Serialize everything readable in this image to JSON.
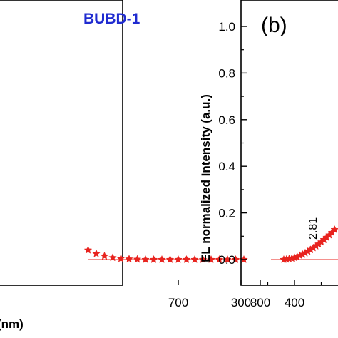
{
  "chart_data": [
    {
      "panel": "",
      "type": "scatter",
      "series_label": "BUBD-1",
      "xlabel": "(nm)",
      "ylabel": "",
      "xlim": [
        500,
        850
      ],
      "x_ticks": [
        "700",
        "800"
      ],
      "colors": {
        "marker": "#e8231e",
        "label": "#1f2bd0"
      },
      "series": [
        {
          "x": [
            590,
            600,
            610,
            620,
            630,
            640,
            650,
            660,
            670,
            680,
            690,
            700,
            710,
            720,
            730,
            740,
            750,
            760,
            770,
            780
          ],
          "y": [
            0.04,
            0.025,
            0.015,
            0.008,
            0.004,
            0.002,
            0.001,
            0.0,
            0.0,
            0.0,
            0.0,
            0.0,
            0.0,
            0.0,
            0.0,
            0.0,
            0.0,
            0.0,
            0.0,
            0.0
          ]
        }
      ]
    },
    {
      "panel": "(b)",
      "type": "scatter",
      "xlabel": "",
      "ylabel": "EL normalized Intensity (a.u.)",
      "xlim": [
        300,
        520
      ],
      "ylim": [
        -0.05,
        1.1
      ],
      "x_ticks": [
        "300",
        "400"
      ],
      "y_ticks": [
        "0.0",
        "0.2",
        "0.4",
        "0.6",
        "0.8",
        "1.0"
      ],
      "annotation": "2.81",
      "colors": {
        "marker": "#e8231e",
        "line": "#e8231e"
      },
      "series": [
        {
          "x": [
            380,
            385,
            390,
            395,
            400,
            405,
            410,
            415,
            420,
            425,
            430,
            435,
            440,
            445,
            450,
            455,
            460,
            465,
            470,
            475
          ],
          "y": [
            0.0,
            0.001,
            0.003,
            0.005,
            0.008,
            0.012,
            0.017,
            0.022,
            0.028,
            0.035,
            0.042,
            0.05,
            0.058,
            0.066,
            0.075,
            0.085,
            0.095,
            0.105,
            0.116,
            0.128
          ]
        }
      ]
    }
  ]
}
